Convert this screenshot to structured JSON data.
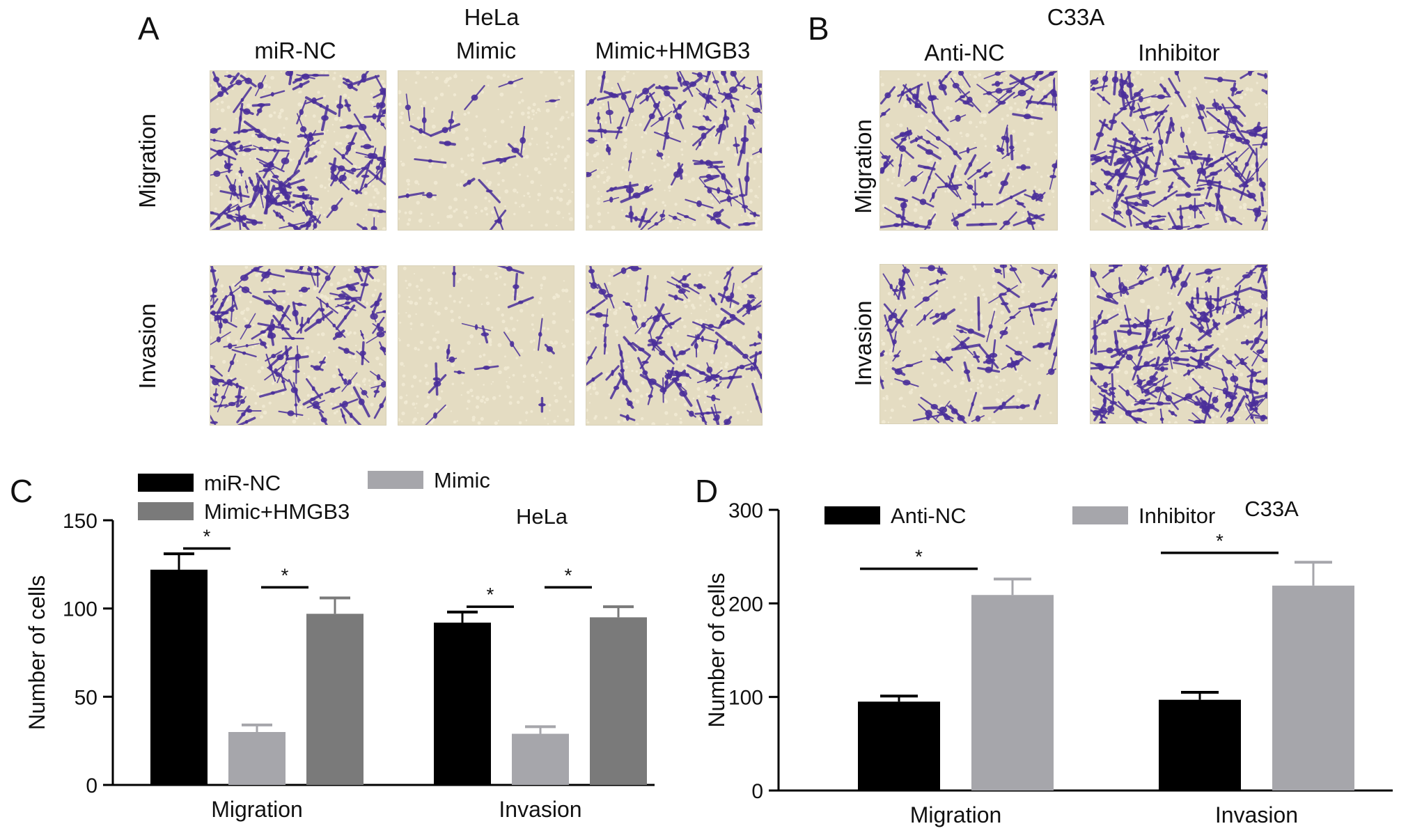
{
  "panel_a": {
    "letter": "A",
    "cell_line": "HeLa",
    "columns": [
      "miR-NC",
      "Mimic",
      "Mimic+HMGB3"
    ],
    "rows": [
      "Migration",
      "Invasion"
    ],
    "densities": [
      [
        0.85,
        0.12,
        0.55
      ],
      [
        0.75,
        0.1,
        0.6
      ]
    ]
  },
  "panel_b": {
    "letter": "B",
    "cell_line": "C33A",
    "columns": [
      "Anti-NC",
      "Inhibitor"
    ],
    "rows": [
      "Migration",
      "Invasion"
    ],
    "densities": [
      [
        0.55,
        0.85
      ],
      [
        0.45,
        1.0
      ]
    ]
  },
  "colors": {
    "black_bar": "#000000",
    "light_gray_bar": "#a6a6ab",
    "dark_gray_bar": "#7a7a7a",
    "micro_bg": "#e4dcc2",
    "stain": "#4a2f9a"
  },
  "chart_data": [
    {
      "panel": "C",
      "type": "bar",
      "title": "HeLa",
      "categories": [
        "Migration",
        "Invasion"
      ],
      "series": [
        {
          "name": "miR-NC",
          "values": [
            122,
            92
          ],
          "errors": [
            9,
            6
          ],
          "color": "#000000"
        },
        {
          "name": "Mimic",
          "values": [
            30,
            29
          ],
          "errors": [
            4,
            4
          ],
          "color": "#a6a6ab"
        },
        {
          "name": "Mimic+HMGB3",
          "values": [
            97,
            95
          ],
          "errors": [
            9,
            6
          ],
          "color": "#7a7a7a"
        }
      ],
      "ylabel": "Number of cells",
      "xlabel": "",
      "ylim": [
        0,
        150
      ],
      "yticks": [
        0,
        50,
        100,
        150
      ],
      "significance": [
        {
          "category": 0,
          "from": 0,
          "to": 1,
          "label": "*",
          "y": 134
        },
        {
          "category": 0,
          "from": 1,
          "to": 2,
          "label": "*",
          "y": 112
        },
        {
          "category": 1,
          "from": 0,
          "to": 1,
          "label": "*",
          "y": 101
        },
        {
          "category": 1,
          "from": 1,
          "to": 2,
          "label": "*",
          "y": 112
        }
      ],
      "legend_position": "top-left",
      "grid": false
    },
    {
      "panel": "D",
      "type": "bar",
      "title": "C33A",
      "categories": [
        "Migration",
        "Invasion"
      ],
      "series": [
        {
          "name": "Anti-NC",
          "values": [
            95,
            97
          ],
          "errors": [
            6,
            8
          ],
          "color": "#000000"
        },
        {
          "name": "Inhibitor",
          "values": [
            209,
            219
          ],
          "errors": [
            17,
            25
          ],
          "color": "#a6a6ab"
        }
      ],
      "ylabel": "Number of cells",
      "xlabel": "",
      "ylim": [
        0,
        300
      ],
      "yticks": [
        0,
        100,
        200,
        300
      ],
      "significance": [
        {
          "category": 0,
          "from": 0,
          "to": 1,
          "label": "*",
          "y": 237
        },
        {
          "category": 1,
          "from": 0,
          "to": 1,
          "label": "*",
          "y": 254
        }
      ],
      "legend_position": "top",
      "grid": false
    }
  ]
}
